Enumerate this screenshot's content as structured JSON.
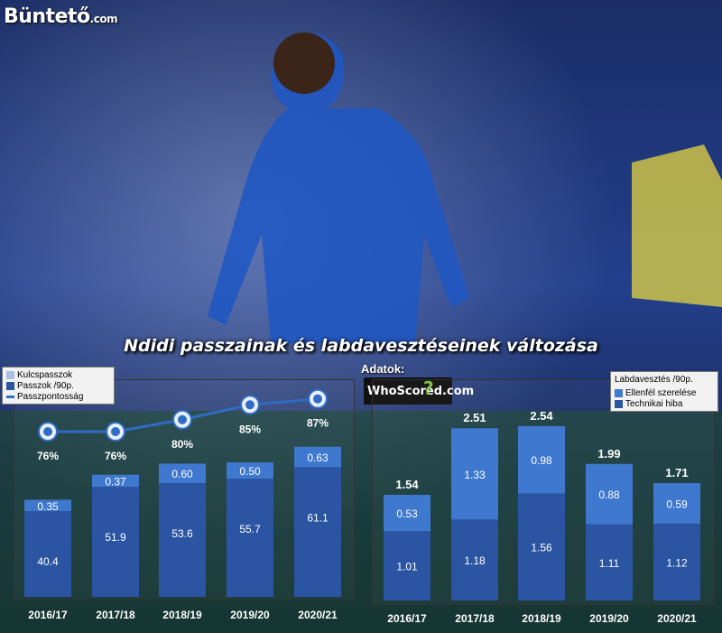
{
  "brand": {
    "logo_text": "Büntető",
    "logo_suffix": ".com"
  },
  "title": "Ndidi passzainak és labdavesztéseinek változása",
  "source_label": "Adatok:",
  "source_logo": "WhoScored.com",
  "colors": {
    "dark_bar": "#2b55a3",
    "light_bar": "#3f78cf",
    "line": "#2f6cc4",
    "kulcs_legend": "#a8bfe6"
  },
  "chart_data": [
    {
      "type": "bar",
      "stacked": true,
      "categories": [
        "2016/17",
        "2017/18",
        "2018/19",
        "2019/20",
        "2020/21"
      ],
      "legend": [
        "Kulcspasszok",
        "Passzok /90p.",
        "Passzpontosság"
      ],
      "series": [
        {
          "name": "Passzok /90p.",
          "values": [
            40.4,
            51.9,
            53.6,
            55.7,
            61.1
          ]
        },
        {
          "name": "Kulcspasszok",
          "values": [
            0.35,
            0.37,
            0.6,
            0.5,
            0.63
          ]
        },
        {
          "name": "Passzpontosság",
          "type": "line",
          "values": [
            76,
            76,
            80,
            85,
            87
          ],
          "labels": [
            "76%",
            "76%",
            "80%",
            "85%",
            "87%"
          ]
        }
      ],
      "value_labels": {
        "passes": [
          "40.4",
          "51.9",
          "53.6",
          "55.7",
          "61.1"
        ],
        "key": [
          "0.35",
          "0.37",
          "0.60",
          "0.50",
          "0.63"
        ]
      }
    },
    {
      "type": "bar",
      "stacked": true,
      "categories": [
        "2016/17",
        "2017/18",
        "2018/19",
        "2019/20",
        "2020/21"
      ],
      "legend_title": "Labdavesztés /90p.",
      "legend": [
        "Ellenfél szerelése",
        "Technikai hiba"
      ],
      "series": [
        {
          "name": "Technikai hiba",
          "values": [
            1.01,
            1.18,
            1.56,
            1.11,
            1.12
          ]
        },
        {
          "name": "Ellenfél szerelése",
          "values": [
            0.53,
            1.33,
            0.98,
            0.88,
            0.59
          ]
        }
      ],
      "totals": [
        1.54,
        2.51,
        2.54,
        1.99,
        1.71
      ],
      "value_labels": {
        "tech": [
          "1.01",
          "1.18",
          "1.56",
          "1.11",
          "1.12"
        ],
        "tackle": [
          "0.53",
          "1.33",
          "0.98",
          "0.88",
          "0.59"
        ],
        "totals": [
          "1.54",
          "2.51",
          "2.54",
          "1.99",
          "1.71"
        ]
      }
    }
  ]
}
